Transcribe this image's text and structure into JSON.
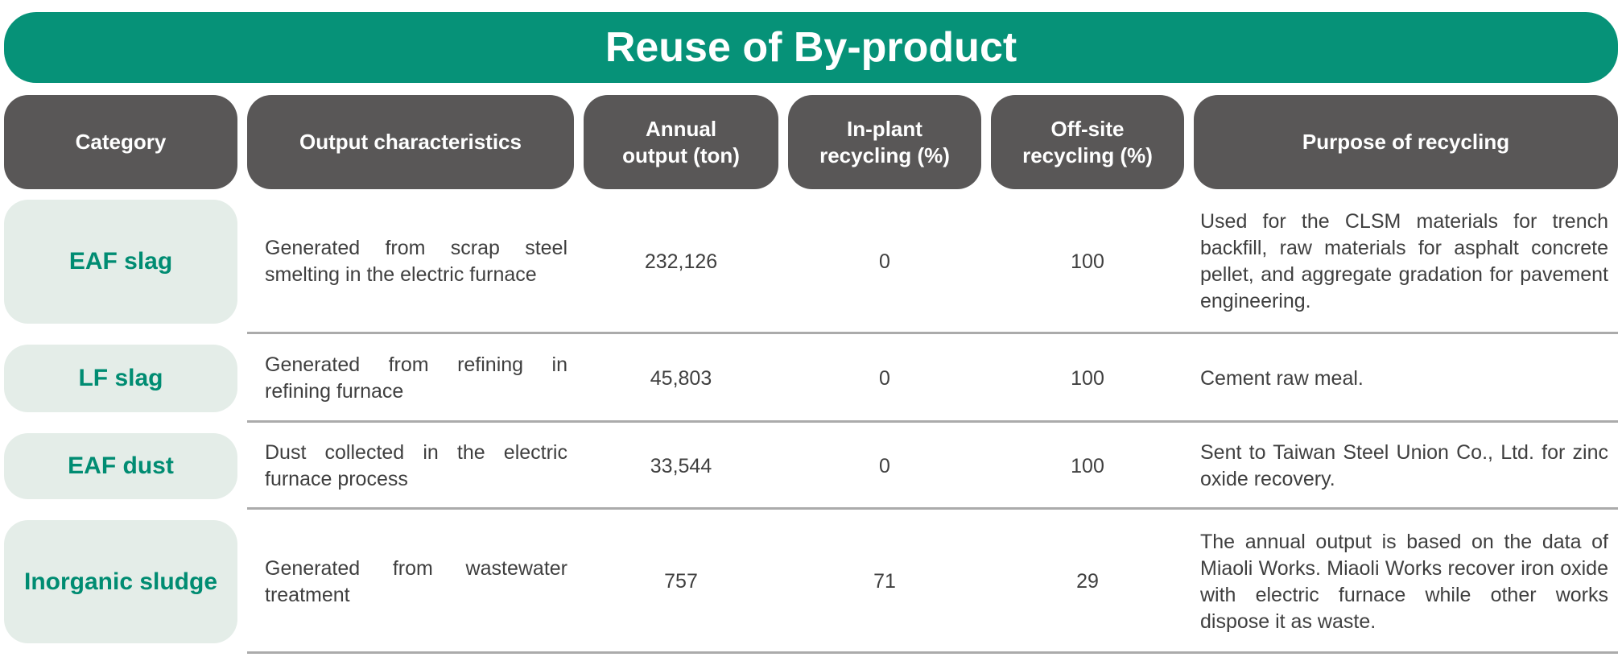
{
  "title": "Reuse of By-product",
  "colors": {
    "teal": "#069278",
    "header_gray": "#595757",
    "category_pill_bg": "#E4EDE8",
    "category_text": "#008C72",
    "body_text": "#3F3F3F",
    "divider": "#ABABAB"
  },
  "table": {
    "columns": [
      {
        "id": "category",
        "label": "Category"
      },
      {
        "id": "output_characteristics",
        "label": "Output characteristics"
      },
      {
        "id": "annual_output",
        "label": "Annual\noutput (ton)"
      },
      {
        "id": "in_plant_recycling",
        "label": "In-plant\nrecycling (%)"
      },
      {
        "id": "off_site_recycling",
        "label": "Off-site\nrecycling (%)"
      },
      {
        "id": "purpose",
        "label": "Purpose of recycling"
      }
    ],
    "rows": [
      {
        "category": "EAF slag",
        "output_characteristics": "Generated from scrap steel smelting in the electric furnace",
        "annual_output": "232,126",
        "in_plant_recycling": "0",
        "off_site_recycling": "100",
        "purpose": "Used for the CLSM materials for trench backfill, raw materials for asphalt concrete pellet, and aggregate gradation for pavement engineering."
      },
      {
        "category": "LF slag",
        "output_characteristics": "Generated from refining in refining furnace",
        "annual_output": "45,803",
        "in_plant_recycling": "0",
        "off_site_recycling": "100",
        "purpose": "Cement raw meal."
      },
      {
        "category": "EAF dust",
        "output_characteristics": "Dust collected in the electric furnace process",
        "annual_output": "33,544",
        "in_plant_recycling": "0",
        "off_site_recycling": "100",
        "purpose": "Sent to Taiwan Steel Union Co., Ltd. for zinc oxide recovery."
      },
      {
        "category": "Inorganic sludge",
        "output_characteristics": "Generated from wastewater treatment",
        "annual_output": "757",
        "in_plant_recycling": "71",
        "off_site_recycling": "29",
        "purpose": "The annual output is based on the data of Miaoli Works. Miaoli Works recover iron oxide with electric furnace while other works dispose it as waste."
      }
    ]
  }
}
